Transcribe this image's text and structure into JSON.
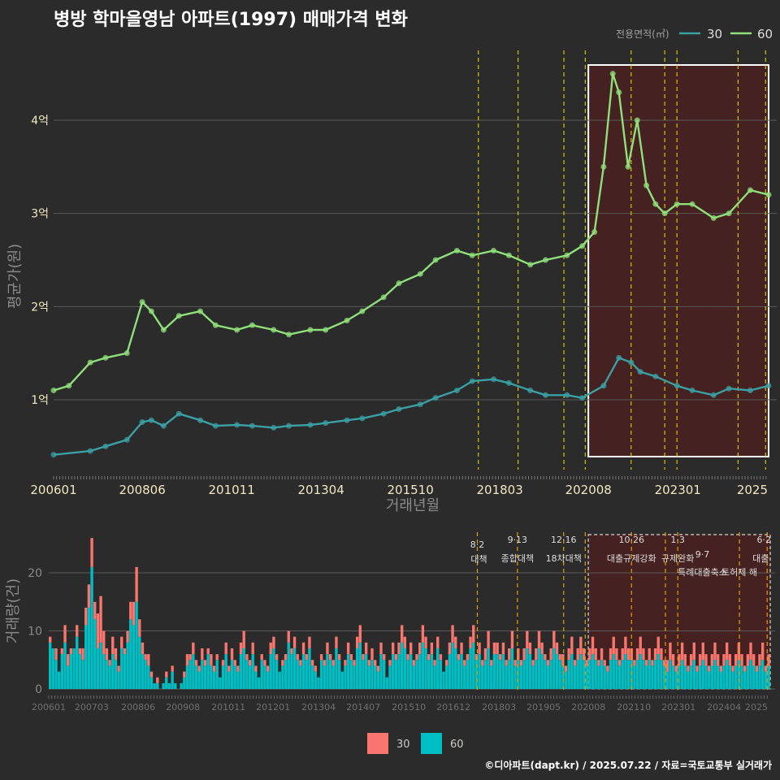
{
  "title": "병방 학마을영남 아파트(1997) 매매가격 변화",
  "footer": "©디아파트(dapt.kr) / 2025.07.22 / 자료=국토교통부 실거래가",
  "colors": {
    "bg": "#2b2b2b",
    "grid": "#5a5a5a",
    "series30": "#3aa0a4",
    "series60": "#8fe07a",
    "vol30": "#f8766d",
    "vol60": "#00bfc4",
    "policy": "#d4c400",
    "policyVol": "#e0a000",
    "highlight": "#4a2020"
  },
  "chart_data": [
    {
      "type": "line",
      "title": "병방 학마을영남 아파트(1997) 매매가격 변화",
      "xlabel": "거래년월",
      "ylabel": "평균가(원)",
      "legend_title": "전용면적(㎡)",
      "legend_position": "top-right",
      "x_ticks": [
        "200601",
        "200806",
        "201011",
        "201304",
        "201510",
        "201803",
        "202008",
        "202301",
        "2025"
      ],
      "y_ticks": [
        "1억",
        "2억",
        "3억",
        "4억"
      ],
      "y_tick_values": [
        1,
        2,
        3,
        4
      ],
      "y_unit": "억",
      "ylim": [
        0.25,
        4.75
      ],
      "xlim": [
        "2006-01",
        "2025-07"
      ],
      "grid": true,
      "series": [
        {
          "name": "30",
          "x": [
            "2006-01",
            "2007-01",
            "2007-06",
            "2008-01",
            "2008-06",
            "2008-09",
            "2009-01",
            "2009-06",
            "2010-01",
            "2010-06",
            "2011-01",
            "2011-06",
            "2012-01",
            "2012-06",
            "2013-01",
            "2013-06",
            "2014-01",
            "2014-06",
            "2015-01",
            "2015-06",
            "2016-01",
            "2016-06",
            "2017-01",
            "2017-06",
            "2018-01",
            "2018-06",
            "2019-01",
            "2019-06",
            "2020-01",
            "2020-06",
            "2021-01",
            "2021-06",
            "2021-10",
            "2022-01",
            "2022-06",
            "2023-01",
            "2023-06",
            "2024-01",
            "2024-06",
            "2025-01",
            "2025-07"
          ],
          "values": [
            0.41,
            0.45,
            0.5,
            0.57,
            0.76,
            0.78,
            0.72,
            0.85,
            0.78,
            0.72,
            0.73,
            0.72,
            0.7,
            0.72,
            0.73,
            0.75,
            0.78,
            0.8,
            0.85,
            0.9,
            0.95,
            1.02,
            1.1,
            1.2,
            1.22,
            1.18,
            1.1,
            1.05,
            1.05,
            1.02,
            1.15,
            1.45,
            1.4,
            1.3,
            1.25,
            1.15,
            1.1,
            1.05,
            1.12,
            1.1,
            1.15
          ]
        },
        {
          "name": "60",
          "x": [
            "2006-01",
            "2006-06",
            "2007-01",
            "2007-06",
            "2008-01",
            "2008-06",
            "2008-09",
            "2009-01",
            "2009-06",
            "2010-01",
            "2010-06",
            "2011-01",
            "2011-06",
            "2012-01",
            "2012-06",
            "2013-01",
            "2013-06",
            "2014-01",
            "2014-06",
            "2015-01",
            "2015-06",
            "2016-01",
            "2016-06",
            "2017-01",
            "2017-06",
            "2018-01",
            "2018-06",
            "2019-01",
            "2019-06",
            "2020-01",
            "2020-06",
            "2020-10",
            "2021-01",
            "2021-04",
            "2021-06",
            "2021-09",
            "2021-12",
            "2022-03",
            "2022-06",
            "2022-09",
            "2023-01",
            "2023-06",
            "2024-01",
            "2024-06",
            "2025-01",
            "2025-07"
          ],
          "values": [
            1.1,
            1.15,
            1.4,
            1.45,
            1.5,
            2.05,
            1.95,
            1.75,
            1.9,
            1.95,
            1.8,
            1.75,
            1.8,
            1.75,
            1.7,
            1.75,
            1.75,
            1.85,
            1.95,
            2.1,
            2.25,
            2.35,
            2.5,
            2.6,
            2.55,
            2.6,
            2.55,
            2.45,
            2.5,
            2.55,
            2.65,
            2.8,
            3.5,
            4.5,
            4.3,
            3.5,
            4.0,
            3.3,
            3.1,
            3.0,
            3.1,
            3.1,
            2.95,
            3.0,
            3.25,
            3.2
          ]
        }
      ],
      "highlight_range": [
        "2020-08",
        "2025-07"
      ],
      "policy_lines": [
        "2017-08",
        "2018-09",
        "2019-12",
        "2020-07",
        "2021-10",
        "2022-09",
        "2023-01",
        "2024-09",
        "2025-06"
      ]
    },
    {
      "type": "bar",
      "stacked": true,
      "ylabel": "거래량(건)",
      "x_ticks": [
        "200601",
        "200703",
        "200806",
        "200908",
        "201011",
        "201201",
        "201304",
        "201407",
        "201510",
        "201612",
        "201803",
        "201905",
        "202008",
        "202110",
        "202301",
        "202404",
        "2025"
      ],
      "y_ticks": [
        "0",
        "10",
        "20"
      ],
      "y_tick_values": [
        0,
        10,
        20
      ],
      "ylim": [
        0,
        27
      ],
      "x_range": [
        "2006-01",
        "2025-07"
      ],
      "legend_position": "bottom",
      "series": [
        {
          "name": "30",
          "values": [
            1,
            0,
            2,
            0,
            1,
            3,
            2,
            1,
            0,
            2,
            1,
            2,
            3,
            4,
            5,
            3,
            6,
            8,
            4,
            2,
            1,
            3,
            2,
            1,
            2,
            1,
            2,
            3,
            4,
            6,
            3,
            2,
            1,
            2,
            1,
            0,
            1,
            0,
            0,
            1,
            0,
            1,
            0,
            0,
            0,
            1,
            2,
            1,
            2,
            1,
            1,
            2,
            1,
            1,
            2,
            1,
            1,
            0,
            1,
            2,
            1,
            2,
            1,
            1,
            2,
            3,
            1,
            1,
            2,
            1,
            0,
            1,
            1,
            1,
            2,
            2,
            1,
            0,
            1,
            1,
            2,
            1,
            2,
            1,
            1,
            2,
            1,
            2,
            1,
            1,
            0,
            1,
            1,
            2,
            1,
            1,
            2,
            1,
            0,
            1,
            2,
            1,
            1,
            2,
            3,
            1,
            2,
            1,
            2,
            1,
            1,
            2,
            1,
            0,
            1,
            2,
            1,
            2,
            3,
            2,
            1,
            2,
            1,
            1,
            2,
            3,
            2,
            1,
            2,
            1,
            2,
            1,
            0,
            1,
            2,
            3,
            2,
            1,
            2,
            1,
            1,
            2,
            3,
            1,
            2,
            1,
            2,
            3,
            1,
            2,
            2,
            1,
            2,
            1,
            2,
            3,
            1,
            2,
            1,
            2,
            3,
            2,
            1,
            2,
            3,
            2,
            1,
            1,
            2,
            3,
            2,
            1,
            2,
            1,
            2,
            3,
            1,
            2,
            3,
            2,
            1,
            2,
            3,
            2,
            1,
            2,
            1,
            1,
            2,
            3,
            2,
            1,
            2,
            3,
            2,
            2,
            1,
            2,
            3,
            2,
            1,
            2,
            1,
            2,
            3,
            2,
            1,
            2,
            3,
            2,
            1,
            2,
            3,
            2,
            1,
            2,
            3,
            1,
            2,
            3,
            2,
            1,
            2,
            3,
            2,
            1,
            2,
            3,
            2,
            1,
            2,
            3,
            2,
            1,
            2,
            3,
            2,
            1,
            2,
            3,
            1,
            2
          ]
        },
        {
          "name": "60",
          "values": [
            8,
            7,
            5,
            3,
            6,
            8,
            4,
            6,
            7,
            9,
            6,
            5,
            11,
            14,
            21,
            12,
            7,
            8,
            6,
            5,
            4,
            6,
            5,
            3,
            7,
            6,
            8,
            12,
            11,
            15,
            9,
            6,
            5,
            4,
            2,
            1,
            1,
            0,
            1,
            2,
            1,
            3,
            1,
            0,
            1,
            2,
            4,
            5,
            6,
            4,
            3,
            5,
            4,
            6,
            4,
            3,
            5,
            2,
            4,
            6,
            3,
            5,
            4,
            3,
            6,
            7,
            5,
            4,
            6,
            3,
            2,
            5,
            4,
            3,
            6,
            7,
            5,
            3,
            4,
            5,
            8,
            6,
            7,
            5,
            4,
            6,
            5,
            7,
            4,
            3,
            2,
            5,
            4,
            6,
            5,
            4,
            7,
            5,
            3,
            4,
            6,
            5,
            4,
            7,
            8,
            5,
            6,
            4,
            5,
            4,
            3,
            6,
            5,
            2,
            4,
            6,
            5,
            6,
            8,
            7,
            5,
            6,
            4,
            5,
            6,
            8,
            7,
            5,
            6,
            4,
            7,
            5,
            3,
            4,
            6,
            8,
            7,
            5,
            6,
            4,
            5,
            7,
            8,
            5,
            6,
            4,
            5,
            7,
            4,
            6,
            6,
            5,
            6,
            4,
            5,
            7,
            4,
            5,
            4,
            5,
            7,
            6,
            4,
            5,
            7,
            6,
            5,
            4,
            5,
            7,
            6,
            5,
            4,
            3,
            5,
            6,
            4,
            5,
            6,
            5,
            4,
            5,
            6,
            5,
            4,
            5,
            4,
            3,
            5,
            6,
            5,
            4,
            5,
            6,
            5,
            5,
            4,
            5,
            6,
            5,
            4,
            5,
            4,
            5,
            6,
            5,
            4,
            3,
            5,
            4,
            3,
            4,
            5,
            4,
            3,
            4,
            5,
            3,
            4,
            5,
            4,
            3,
            4,
            5,
            4,
            3,
            4,
            5,
            4,
            3,
            4,
            5,
            4,
            3,
            4,
            5,
            4,
            3,
            4,
            5,
            3,
            4
          ]
        }
      ],
      "highlight_range": [
        "2020-08",
        "2025-07"
      ],
      "policy_lines": [
        "2017-08",
        "2018-09",
        "2019-12",
        "2020-07",
        "2021-10",
        "2022-09",
        "2023-01",
        "2024-09",
        "2025-06"
      ],
      "annotations": [
        {
          "date": "8·2",
          "label": "대책",
          "anchor": "2017-08"
        },
        {
          "date": "9·13",
          "label": "종합대책",
          "anchor": "2018-09"
        },
        {
          "date": "12·16",
          "label": "18차대책",
          "anchor": "2019-12"
        },
        {
          "date": "10·26",
          "label": "대출규제강화",
          "anchor": "2021-10"
        },
        {
          "date": "1·3",
          "label": "규제완화",
          "anchor": "2023-01"
        },
        {
          "date": "9·7",
          "label": "특례대출축소",
          "anchor": "2023-09"
        },
        {
          "date": "",
          "label": "토허제 해",
          "anchor": "2024-09"
        },
        {
          "date": "6·2",
          "label": "대출",
          "anchor": "2025-06"
        }
      ]
    }
  ]
}
